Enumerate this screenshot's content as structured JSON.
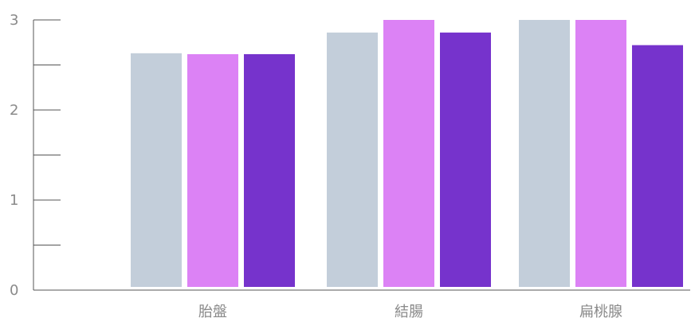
{
  "chart_data": {
    "type": "bar",
    "categories": [
      "胎盤",
      "結腸",
      "扁桃腺"
    ],
    "series": [
      {
        "values": [
          2.63,
          2.86,
          3.0
        ],
        "color": "#c3ceda"
      },
      {
        "values": [
          2.62,
          3.0,
          3.0
        ],
        "color": "#dc82f5"
      },
      {
        "values": [
          2.62,
          2.86,
          2.72
        ],
        "color": "#7633cc"
      }
    ],
    "ylim": [
      0,
      3
    ],
    "yticks": [
      0,
      1,
      2,
      3
    ],
    "ytick_labels": [
      "0",
      "1",
      "2",
      "3"
    ],
    "minor_ticks": [
      0.5,
      1.5,
      2.5
    ],
    "grid": false,
    "legend": "none"
  }
}
